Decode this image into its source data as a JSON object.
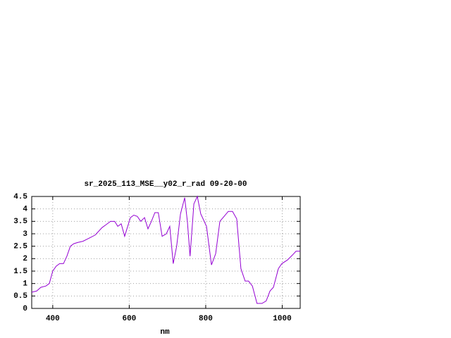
{
  "chart_data": {
    "type": "line",
    "title": "sr_2025_113_MSE__y02_r_rad 09-20-00",
    "x_label": "nm",
    "xlim": [
      345,
      1047
    ],
    "ylim": [
      0,
      4.5
    ],
    "xticks": [
      400,
      600,
      800,
      1000
    ],
    "yticks": [
      0,
      0.5,
      1,
      1.5,
      2,
      2.5,
      3,
      3.5,
      4,
      4.5
    ],
    "grid": true,
    "series": [
      {
        "color": "#9400d3",
        "x": [
          345,
          358,
          369,
          382,
          391,
          400,
          409,
          418,
          428,
          437,
          446,
          455,
          465,
          479,
          492,
          511,
          529,
          538,
          551,
          562,
          570,
          579,
          588,
          594,
          603,
          612,
          621,
          630,
          640,
          649,
          658,
          667,
          676,
          686,
          697,
          706,
          715,
          724,
          734,
          745,
          752,
          759,
          769,
          778,
          787,
          802,
          815,
          826,
          837,
          848,
          859,
          870,
          881,
          892,
          903,
          912,
          922,
          934,
          947,
          958,
          968,
          977,
          990,
          999,
          1014,
          1027,
          1036,
          1047
        ],
        "values": [
          0.65,
          0.7,
          0.85,
          0.9,
          1.0,
          1.5,
          1.7,
          1.8,
          1.8,
          2.1,
          2.5,
          2.6,
          2.65,
          2.7,
          2.8,
          2.95,
          3.25,
          3.35,
          3.5,
          3.5,
          3.3,
          3.4,
          2.9,
          3.2,
          3.65,
          3.75,
          3.7,
          3.5,
          3.65,
          3.2,
          3.5,
          3.85,
          3.85,
          2.9,
          3.0,
          3.3,
          1.8,
          2.5,
          3.8,
          4.45,
          3.5,
          2.1,
          4.2,
          4.5,
          3.8,
          3.3,
          1.75,
          2.2,
          3.5,
          3.7,
          3.9,
          3.9,
          3.6,
          1.6,
          1.1,
          1.1,
          0.9,
          0.2,
          0.2,
          0.3,
          0.7,
          0.85,
          1.6,
          1.8,
          1.95,
          2.15,
          2.3,
          2.3
        ]
      }
    ]
  }
}
